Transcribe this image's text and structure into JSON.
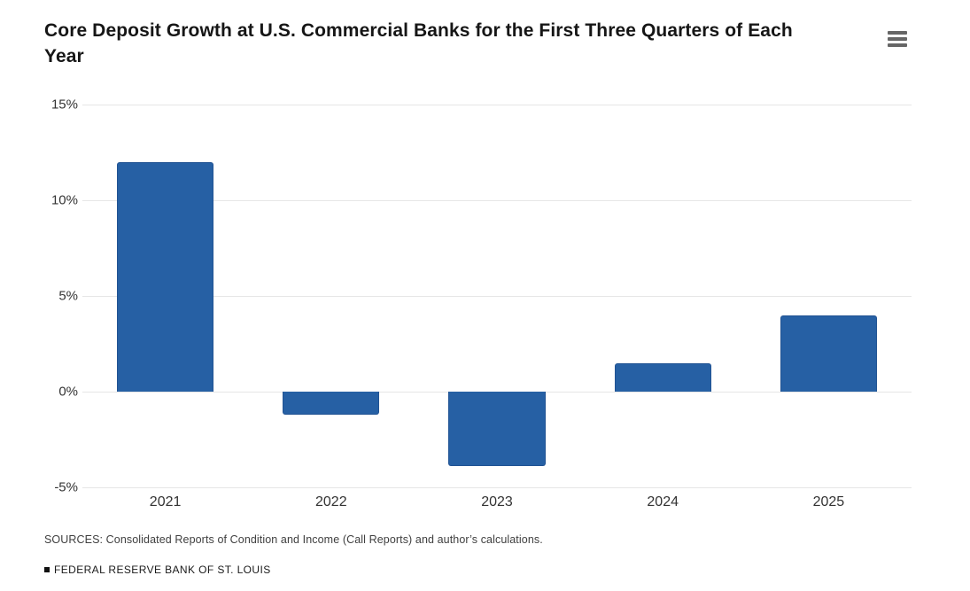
{
  "header": {
    "title": "Core Deposit Growth at U.S. Commercial Banks for the First Three Quarters of Each Year",
    "menu_button": "chart-context-menu"
  },
  "chart_data": {
    "type": "bar",
    "title": "Core Deposit Growth at U.S. Commercial Banks for the First Three Quarters of Each Year",
    "categories": [
      "2021",
      "2022",
      "2023",
      "2024",
      "2025"
    ],
    "values": [
      12,
      -1.2,
      -3.9,
      1.5,
      4
    ],
    "unit": "%",
    "xlabel": "",
    "ylabel": "",
    "ylim": [
      -5,
      15
    ],
    "yticks": [
      15,
      10,
      5,
      0,
      -5
    ],
    "ytick_labels": [
      "15%",
      "10%",
      "5%",
      "0%",
      "-5%"
    ],
    "grid": true,
    "legend": false,
    "bar_color": "#2660A4",
    "bar_border_color": "#215393",
    "gridline_color": "#e6e6e6"
  },
  "footer": {
    "sources": "SOURCES: Consolidated Reports of Condition and Income (Call Reports) and author’s calculations.",
    "brand": "FEDERAL RESERVE BANK OF ST. LOUIS"
  }
}
